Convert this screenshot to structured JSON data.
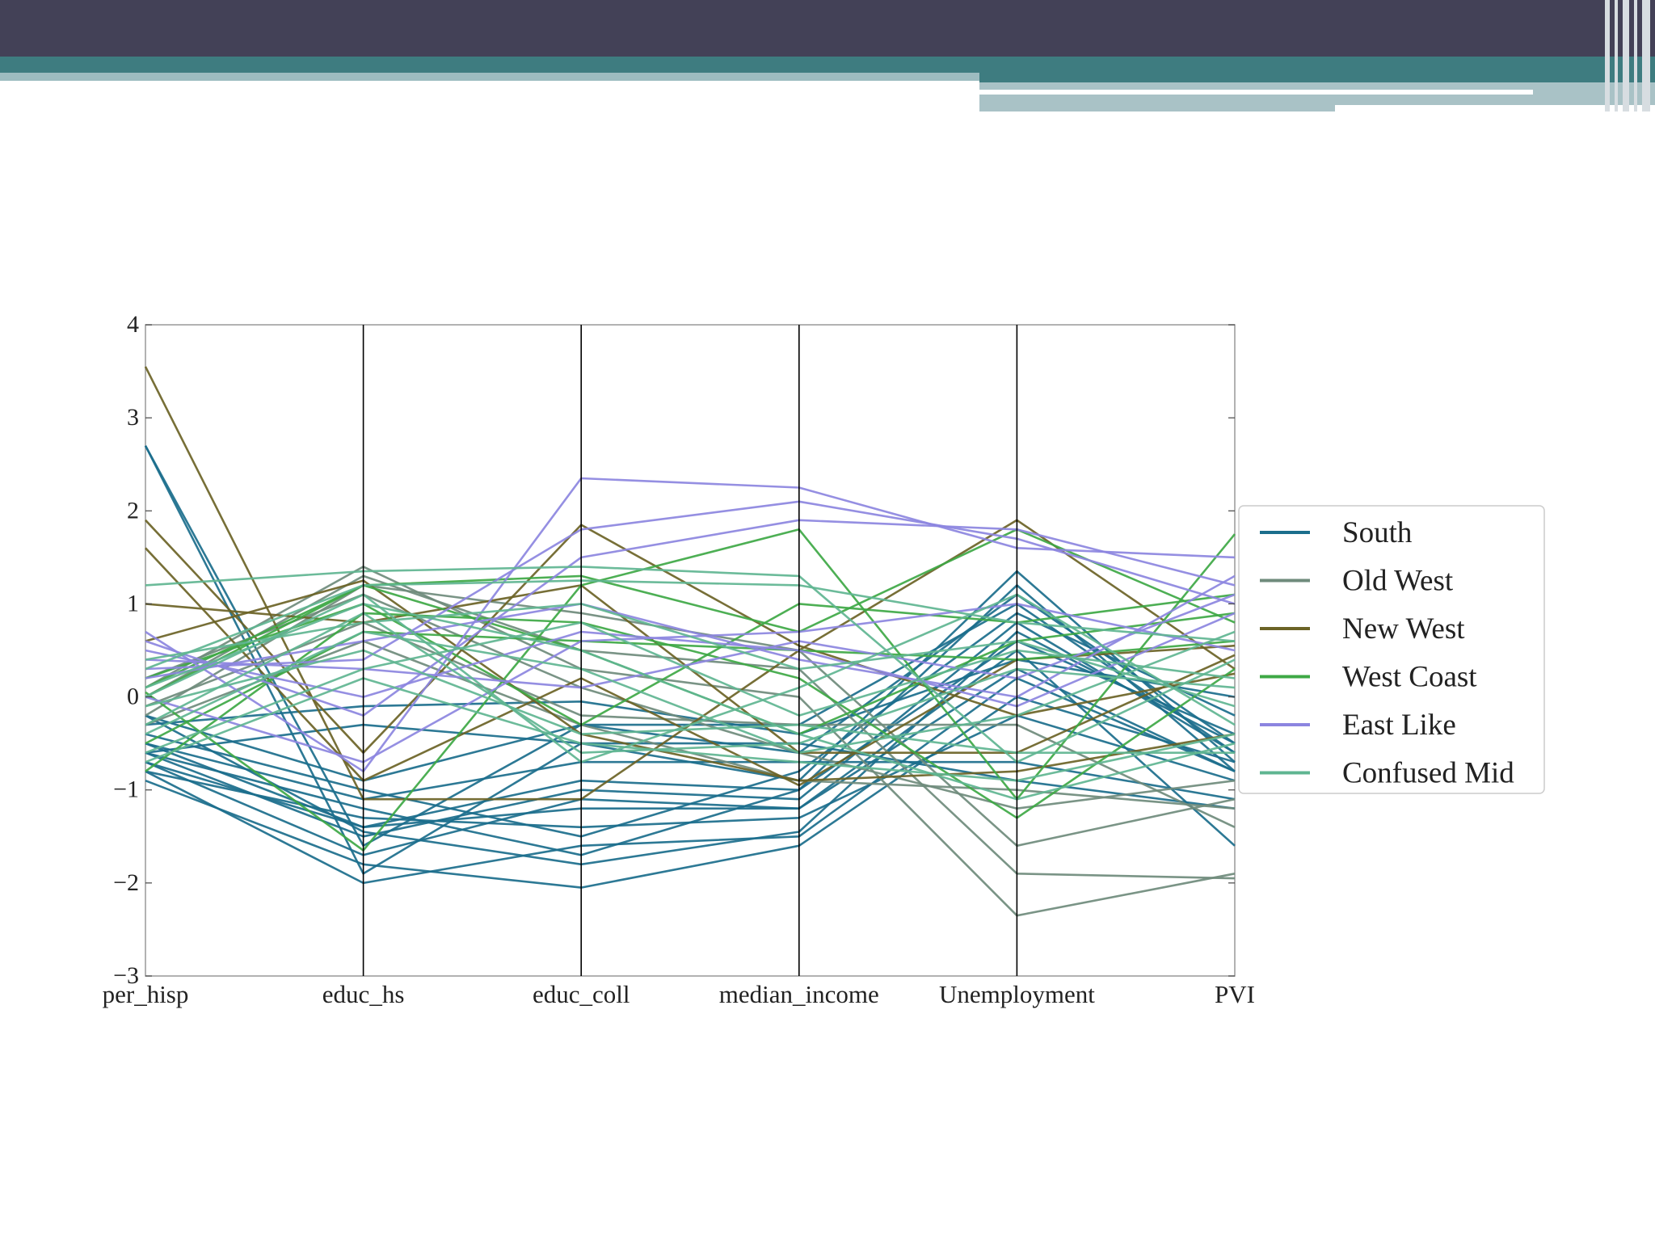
{
  "chart_data": {
    "type": "line",
    "subtype": "parallel-coordinates",
    "axes": [
      "per_hisp",
      "educ_hs",
      "educ_coll",
      "median_income",
      "Unemployment",
      "PVI"
    ],
    "ylim": [
      -3,
      4
    ],
    "yticks": [
      "4",
      "3",
      "2",
      "1",
      "0",
      "−1",
      "−2",
      "−3"
    ],
    "ytick_values": [
      4,
      3,
      2,
      1,
      0,
      -1,
      -2,
      -3
    ],
    "grid": false,
    "legend_position": "right",
    "legend": [
      {
        "name": "South",
        "color": "#1b6e8c"
      },
      {
        "name": "Old West",
        "color": "#6f8b7c"
      },
      {
        "name": "New West",
        "color": "#6b6326"
      },
      {
        "name": "West Coast",
        "color": "#3ea845"
      },
      {
        "name": "East Like",
        "color": "#8c85e0"
      },
      {
        "name": "Confused Mid",
        "color": "#5fb591"
      }
    ],
    "series": [
      {
        "class": "South",
        "values": [
          [
            2.7,
            -1.9,
            -0.5,
            -0.9,
            1.35,
            -0.7
          ],
          [
            2.7,
            -1.6,
            -0.3,
            -0.6,
            1.1,
            -0.5
          ],
          [
            -0.5,
            -1.4,
            -0.9,
            -1.0,
            1.2,
            -0.8
          ],
          [
            -0.6,
            -1.5,
            -1.0,
            -1.1,
            0.8,
            -0.6
          ],
          [
            -0.7,
            -1.7,
            -1.1,
            -1.2,
            0.5,
            -1.6
          ],
          [
            -0.8,
            -2.0,
            -1.6,
            -1.5,
            0.2,
            -0.8
          ],
          [
            -0.9,
            -1.8,
            -2.05,
            -1.6,
            0.0,
            -0.7
          ],
          [
            -0.8,
            -1.3,
            -1.4,
            -1.3,
            -0.2,
            -0.9
          ],
          [
            -0.6,
            -1.2,
            -1.7,
            -1.0,
            0.6,
            -0.4
          ],
          [
            -0.4,
            -1.0,
            -1.5,
            -0.8,
            0.9,
            -0.2
          ],
          [
            -0.2,
            -0.9,
            -0.3,
            -0.3,
            1.0,
            -0.6
          ],
          [
            -0.3,
            -0.1,
            -0.05,
            -0.4,
            0.4,
            0.0
          ],
          [
            -0.5,
            -1.1,
            -0.7,
            -0.7,
            -0.7,
            -1.1
          ],
          [
            -0.7,
            -1.4,
            -1.2,
            -1.2,
            0.3,
            -0.8
          ],
          [
            -0.2,
            -1.45,
            -1.8,
            -1.45,
            0.7,
            -0.5
          ],
          [
            -0.6,
            -0.3,
            -0.5,
            -0.5,
            -0.9,
            -1.2
          ]
        ]
      },
      {
        "class": "Old West",
        "values": [
          [
            0.1,
            1.4,
            0.3,
            0.0,
            -2.35,
            -1.9
          ],
          [
            0.0,
            1.3,
            0.5,
            0.3,
            -1.9,
            -1.95
          ],
          [
            -0.2,
            1.2,
            0.9,
            0.5,
            -1.6,
            -1.1
          ],
          [
            -0.3,
            0.6,
            -0.3,
            -0.9,
            -1.0,
            -1.2
          ],
          [
            0.2,
            1.1,
            0.1,
            -0.6,
            -1.2,
            -0.9
          ],
          [
            -0.1,
            0.8,
            -0.2,
            -0.3,
            -0.3,
            -1.4
          ]
        ]
      },
      {
        "class": "New West",
        "values": [
          [
            3.55,
            -1.1,
            -1.1,
            0.5,
            1.9,
            0.3
          ],
          [
            1.9,
            -0.6,
            1.85,
            0.55,
            -0.2,
            0.25
          ],
          [
            1.6,
            -0.9,
            0.2,
            -0.95,
            0.4,
            0.55
          ],
          [
            1.0,
            0.8,
            1.2,
            -0.6,
            -0.6,
            0.45
          ],
          [
            0.6,
            1.25,
            -0.4,
            -0.9,
            -0.8,
            -0.4
          ]
        ]
      },
      {
        "class": "West Coast",
        "values": [
          [
            0.05,
            -1.65,
            1.2,
            1.8,
            -1.1,
            1.75
          ],
          [
            0.0,
            1.2,
            1.3,
            0.7,
            1.8,
            0.8
          ],
          [
            -0.5,
            0.7,
            0.6,
            0.5,
            0.4,
            0.6
          ],
          [
            0.2,
            1.0,
            -0.3,
            1.0,
            0.8,
            1.1
          ],
          [
            -0.8,
            0.9,
            0.8,
            0.2,
            -1.3,
            0.3
          ],
          [
            0.1,
            1.2,
            0.5,
            -0.4,
            0.6,
            0.9
          ]
        ]
      },
      {
        "class": "East Like",
        "values": [
          [
            0.7,
            -0.8,
            2.35,
            2.25,
            1.6,
            1.5
          ],
          [
            0.6,
            -0.2,
            1.5,
            1.9,
            1.8,
            1.2
          ],
          [
            0.3,
            0.4,
            1.8,
            2.1,
            1.7,
            1.0
          ],
          [
            0.5,
            0.0,
            0.7,
            0.5,
            -0.1,
            0.9
          ],
          [
            0.2,
            0.6,
            1.0,
            0.4,
            0.0,
            1.3
          ],
          [
            0.0,
            -0.7,
            0.6,
            0.7,
            1.0,
            0.5
          ],
          [
            0.4,
            0.3,
            0.1,
            0.6,
            0.2,
            1.1
          ]
        ]
      },
      {
        "class": "Confused Mid",
        "values": [
          [
            1.2,
            1.35,
            1.4,
            1.3,
            -0.7,
            0.4
          ],
          [
            0.1,
            1.0,
            0.5,
            -0.4,
            -1.1,
            -0.5
          ],
          [
            -0.3,
            0.9,
            -0.6,
            -0.5,
            0.3,
            0.1
          ],
          [
            0.3,
            1.2,
            1.25,
            1.2,
            0.8,
            0.6
          ],
          [
            -0.1,
            0.5,
            -0.4,
            -0.3,
            -0.6,
            -0.6
          ],
          [
            -0.6,
            0.3,
            0.8,
            -0.2,
            0.5,
            0.2
          ],
          [
            0.0,
            1.1,
            -0.7,
            0.1,
            1.1,
            -0.3
          ],
          [
            -0.4,
            0.7,
            0.3,
            -0.6,
            -0.2,
            0.7
          ],
          [
            0.4,
            0.8,
            1.0,
            0.3,
            0.6,
            -0.1
          ],
          [
            -0.7,
            0.2,
            -0.5,
            -0.7,
            -0.9,
            -0.4
          ]
        ]
      }
    ]
  }
}
